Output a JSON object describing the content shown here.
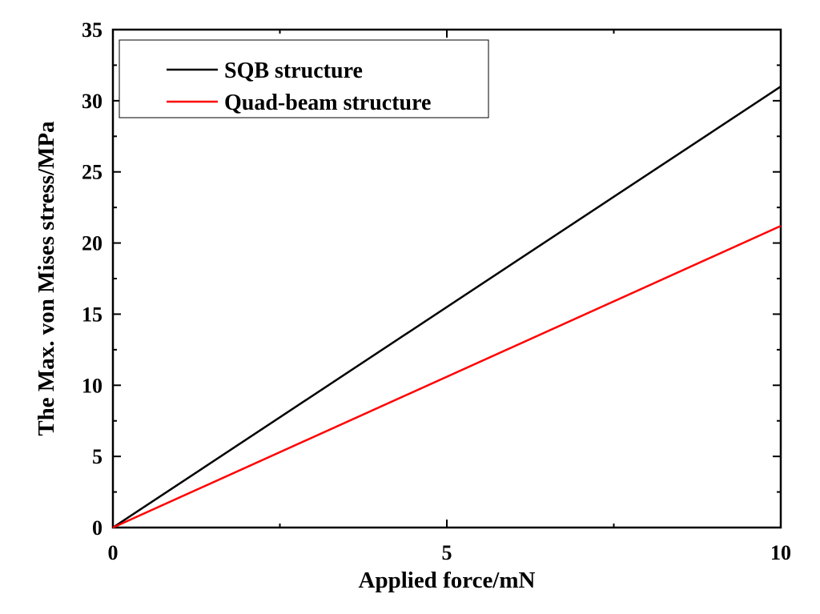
{
  "chart_data": {
    "type": "line",
    "title": "",
    "xlabel": "Applied force/mN",
    "ylabel": "The Max. von Mises stress/MPa",
    "xlim": [
      0,
      10
    ],
    "ylim": [
      0,
      35
    ],
    "x_major_ticks": [
      0,
      5,
      10
    ],
    "x_tick_labels": [
      "0",
      "5",
      "10"
    ],
    "x_minor_ticks": [
      2.5,
      7.5
    ],
    "y_major_ticks": [
      0,
      5,
      10,
      15,
      20,
      25,
      30,
      35
    ],
    "y_tick_labels": [
      "0",
      "5",
      "10",
      "15",
      "20",
      "25",
      "30",
      "35"
    ],
    "y_minor_ticks": [
      2.5,
      7.5,
      12.5,
      17.5,
      22.5,
      27.5,
      32.5
    ],
    "grid": false,
    "legend_position": "top-left",
    "series": [
      {
        "name": "SQB structure",
        "color": "#000000",
        "x": [
          0,
          10
        ],
        "y": [
          0,
          31.0
        ]
      },
      {
        "name": "Quad-beam structure",
        "color": "#ff0000",
        "x": [
          0,
          10
        ],
        "y": [
          0,
          21.2
        ]
      }
    ]
  }
}
